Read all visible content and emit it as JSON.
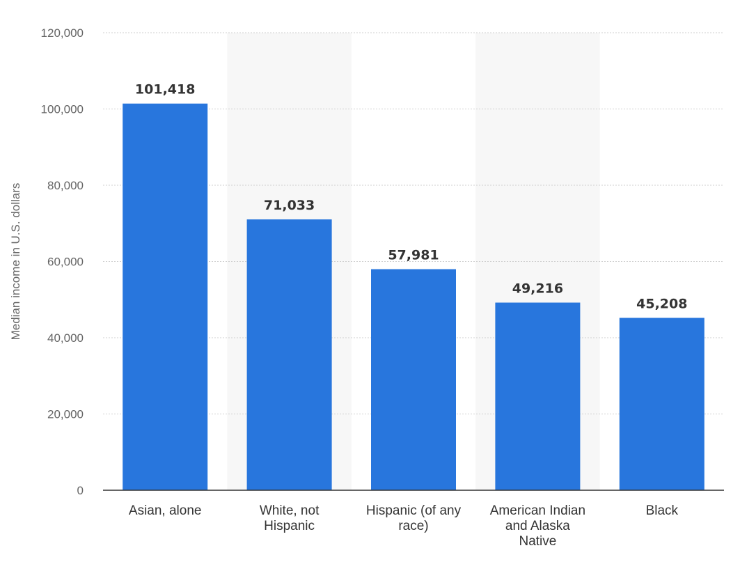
{
  "chart_data": {
    "type": "bar",
    "title": "",
    "xlabel": "",
    "ylabel": "Median income in U.S. dollars",
    "categories": [
      [
        "Asian, alone"
      ],
      [
        "White, not",
        "Hispanic"
      ],
      [
        "Hispanic (of any",
        "race)"
      ],
      [
        "American Indian",
        "and Alaska",
        "Native"
      ],
      [
        "Black"
      ]
    ],
    "values": [
      101418,
      71033,
      57981,
      49216,
      45208
    ],
    "value_labels": [
      "101,418",
      "71,033",
      "57,981",
      "49,216",
      "45,208"
    ],
    "ylim": [
      0,
      120000
    ],
    "yticks": [
      0,
      20000,
      40000,
      60000,
      80000,
      100000,
      120000
    ],
    "ytick_labels": [
      "0",
      "20,000",
      "40,000",
      "60,000",
      "80,000",
      "100,000",
      "120,000"
    ],
    "grid": true,
    "legend": "none",
    "colors": {
      "bar": "#2876dd",
      "grid": "#cfcfcf",
      "band": "#f7f7f7",
      "axis": "#333333"
    }
  }
}
